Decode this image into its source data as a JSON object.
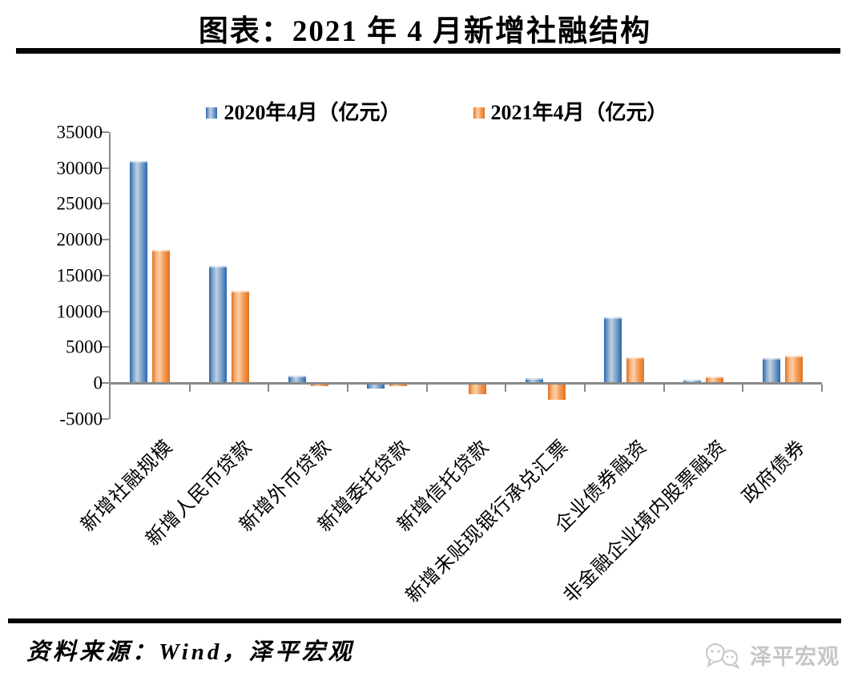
{
  "page": {
    "source_note": "资料来源：Wind，泽平宏观",
    "watermark_text": "泽平宏观"
  },
  "chart_data": {
    "type": "bar",
    "title": "图表：2021 年 4 月新增社融结构",
    "categories": [
      "新增社融规模",
      "新增人民币贷款",
      "新增外币贷款",
      "新增委托贷款",
      "新增信托贷款",
      "新增未贴现银行承兑汇票",
      "企业债券融资",
      "非金融企业境内股票融资",
      "政府债券"
    ],
    "series": [
      {
        "name": "2020年4月（亿元）",
        "color": "#2a66ae",
        "values": [
          30900,
          16200,
          903,
          -579,
          23,
          577,
          9015,
          315,
          3357
        ]
      },
      {
        "name": "2021年4月（亿元）",
        "color": "#e1711c",
        "values": [
          18500,
          12800,
          -232,
          -213,
          -1328,
          -2152,
          3509,
          814,
          3739
        ]
      }
    ],
    "ylim": [
      -5000,
      35000
    ],
    "yticks": [
      35000,
      30000,
      25000,
      20000,
      15000,
      10000,
      5000,
      0,
      -5000
    ],
    "xlabel": "",
    "ylabel": "",
    "legend_position": "top",
    "grid": false
  }
}
